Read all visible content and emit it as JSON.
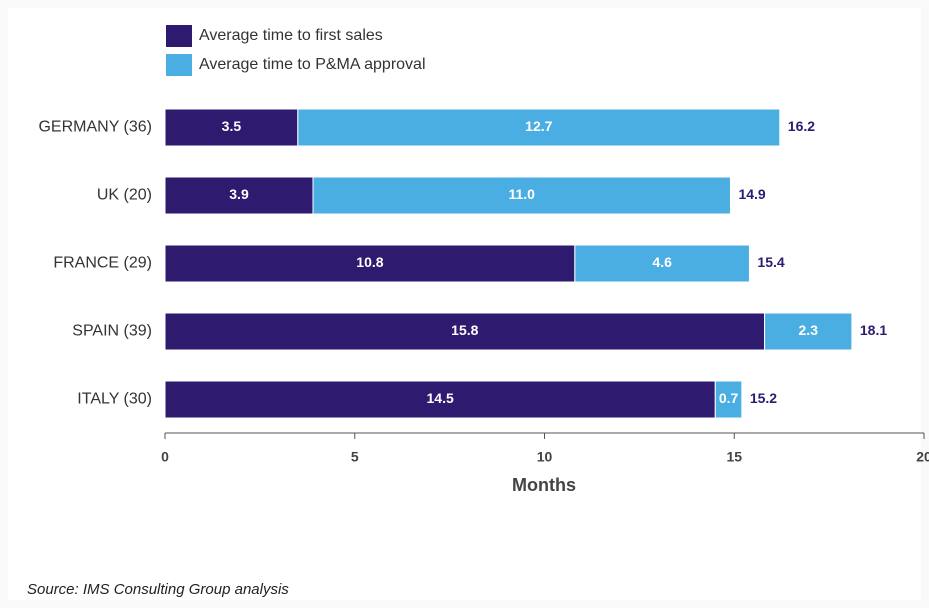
{
  "chart_data": {
    "type": "bar",
    "orientation": "horizontal",
    "stacked": true,
    "categories": [
      "GERMANY (36)",
      "UK (20)",
      "FRANCE (29)",
      "SPAIN (39)",
      "ITALY (30)"
    ],
    "series": [
      {
        "name": "Average time to first sales",
        "color": "#2e1a6e",
        "values": [
          3.5,
          3.9,
          10.8,
          15.8,
          14.5
        ],
        "value_labels": [
          "3.5",
          "3.9",
          "10.8",
          "15.8",
          "14.5"
        ]
      },
      {
        "name": "Average time to P&MA approval",
        "color": "#4aaee3",
        "values": [
          12.7,
          11.0,
          4.6,
          2.3,
          0.7
        ],
        "value_labels": [
          "12.7",
          "11.0",
          "4.6",
          "2.3",
          "0.7"
        ]
      }
    ],
    "totals": [
      16.2,
      14.9,
      15.4,
      18.1,
      15.2
    ],
    "xlabel": "Months",
    "xlim": [
      0,
      20
    ],
    "xticks": [
      0,
      5,
      10,
      15,
      20
    ],
    "legend": "top-left",
    "source": "Source: IMS Consulting Group analysis"
  }
}
